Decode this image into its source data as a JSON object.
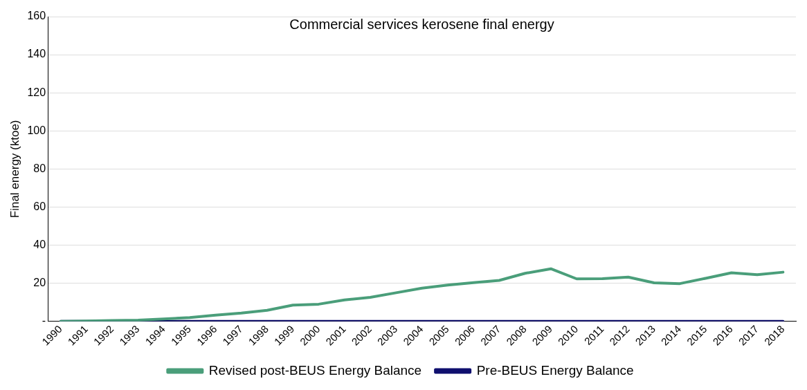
{
  "chart_data": {
    "type": "line",
    "title": "Commercial services kerosene final energy",
    "ylabel": "Final energy (ktoe)",
    "categories": [
      "1990",
      "1991",
      "1992",
      "1993",
      "1994",
      "1995",
      "1996",
      "1997",
      "1998",
      "1999",
      "2000",
      "2001",
      "2002",
      "2003",
      "2004",
      "2005",
      "2006",
      "2007",
      "2008",
      "2009",
      "2010",
      "2011",
      "2012",
      "2013",
      "2014",
      "2015",
      "2016",
      "2017",
      "2018"
    ],
    "series": [
      {
        "name": "Pre-BEUS Energy Balance",
        "color": "#0f0f6e",
        "values": [
          0,
          0,
          0,
          0,
          0,
          0,
          0,
          0,
          0,
          0,
          0,
          0,
          0,
          0,
          0,
          0,
          0,
          0,
          0,
          0,
          0,
          0,
          0,
          0,
          0,
          0,
          0,
          0,
          0
        ]
      },
      {
        "name": "Revised post-BEUS Energy Balance",
        "color": "#4a9e7a",
        "values": [
          0,
          0.2,
          0.4,
          0.6,
          1.2,
          2,
          3.2,
          4.3,
          5.8,
          8.5,
          9,
          11.2,
          12.6,
          15,
          17.4,
          19,
          20.3,
          21.5,
          25.2,
          27.6,
          22.3,
          22.4,
          23.2,
          20.2,
          19.8,
          22.6,
          25.5,
          24.5,
          25.8
        ]
      }
    ],
    "ylim": [
      0,
      160
    ],
    "yticks": [
      {
        "value": 0,
        "label": "-"
      },
      20,
      40,
      60,
      80,
      100,
      120,
      140,
      160
    ],
    "grid": "y",
    "legend": "bottom",
    "marker": "none",
    "line_style": "solid"
  }
}
